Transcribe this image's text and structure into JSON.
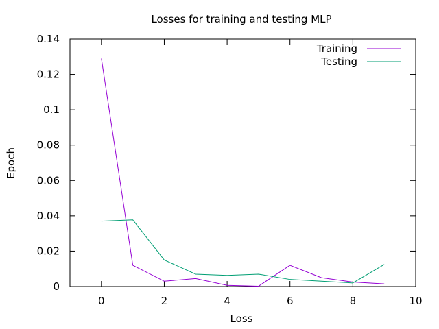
{
  "chart_data": {
    "type": "line",
    "title": "Losses for training and testing MLP",
    "xlabel": "Loss",
    "ylabel": "Epoch",
    "xlim": [
      -1,
      10
    ],
    "ylim": [
      0,
      0.14
    ],
    "xticks": [
      0,
      2,
      4,
      6,
      8,
      10
    ],
    "yticks": [
      0,
      0.02,
      0.04,
      0.06,
      0.08,
      0.1,
      0.12,
      0.14
    ],
    "grid": false,
    "legend_position": "top-right",
    "x": [
      0,
      1,
      2,
      3,
      4,
      5,
      6,
      7,
      8,
      9
    ],
    "series": [
      {
        "name": "Training",
        "color": "#9400d3",
        "values": [
          0.129,
          0.012,
          0.003,
          0.0045,
          0.0007,
          0.0002,
          0.012,
          0.005,
          0.0025,
          0.0015
        ]
      },
      {
        "name": "Testing",
        "color": "#009e73",
        "values": [
          0.037,
          0.0377,
          0.015,
          0.007,
          0.0063,
          0.007,
          0.004,
          0.003,
          0.002,
          0.0125
        ]
      }
    ]
  }
}
